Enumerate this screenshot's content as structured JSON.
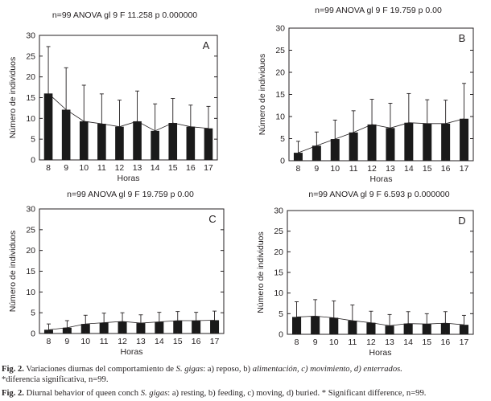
{
  "chart_data": [
    {
      "type": "bar",
      "panel_letter": "A",
      "title": "n=99 ANOVA gl 9 F 11.258 p 0.000000",
      "xlabel": "Horas",
      "ylabel": "Número de individuos",
      "categories": [
        "8",
        "9",
        "10",
        "11",
        "12",
        "13",
        "14",
        "15",
        "16",
        "17"
      ],
      "values": [
        16,
        12.1,
        9.3,
        8.7,
        8,
        9.3,
        7,
        8.9,
        8,
        7.6
      ],
      "error": [
        11.3,
        10.1,
        8.7,
        7.2,
        6.4,
        7.3,
        6.5,
        5.9,
        5.2,
        5.3
      ],
      "ylim": [
        0,
        30
      ],
      "yticks": [
        "0",
        "5",
        "10",
        "15",
        "20",
        "25",
        "30"
      ],
      "trend_line": true
    },
    {
      "type": "bar",
      "panel_letter": "B",
      "title": "n=99 ANOVA gl 9 F 19.759 p 0.00",
      "xlabel": "Horas",
      "ylabel": "Número de individuos",
      "categories": [
        "8",
        "9",
        "10",
        "11",
        "12",
        "13",
        "14",
        "15",
        "16",
        "17"
      ],
      "values": [
        1.8,
        3.4,
        4.9,
        6.4,
        8.2,
        7.4,
        8.6,
        8.4,
        8.4,
        9.5
      ],
      "error": [
        2.6,
        3.1,
        4.3,
        4.9,
        5.7,
        5.6,
        6.6,
        5.4,
        5.3,
        8
      ],
      "ylim": [
        0,
        30
      ],
      "yticks": [
        "0",
        "5",
        "10",
        "15",
        "20",
        "25",
        "30"
      ],
      "trend_line": true
    },
    {
      "type": "bar",
      "panel_letter": "C",
      "title": "n=99 ANOVA gl 9 F 19.759 p 0.00",
      "xlabel": "Horas",
      "ylabel": "Número de individuos",
      "categories": [
        "8",
        "9",
        "10",
        "11",
        "12",
        "13",
        "14",
        "15",
        "16",
        "17"
      ],
      "values": [
        0.9,
        1.4,
        2.3,
        2.6,
        2.9,
        2.5,
        2.8,
        3.1,
        3.1,
        3.2
      ],
      "error": [
        1.4,
        1.7,
        2.1,
        2.3,
        2.1,
        2,
        2.3,
        2.2,
        2,
        2.2
      ],
      "ylim": [
        0,
        30
      ],
      "yticks": [
        "0",
        "5",
        "10",
        "15",
        "20",
        "25",
        "30"
      ],
      "trend_line": true
    },
    {
      "type": "bar",
      "panel_letter": "D",
      "title": "n=99 ANOVA gl 9 F 6.593 p 0.000000",
      "xlabel": "Horas",
      "ylabel": "Número de individuos",
      "categories": [
        "8",
        "9",
        "10",
        "11",
        "12",
        "13",
        "14",
        "15",
        "16",
        "17"
      ],
      "values": [
        4.2,
        4.4,
        4,
        3.3,
        2.8,
        2.1,
        2.6,
        2.5,
        2.7,
        2.3
      ],
      "error": [
        3.7,
        4,
        4.1,
        3.8,
        2.8,
        2.7,
        2.9,
        2.5,
        2.8,
        2.3
      ],
      "ylim": [
        0,
        30
      ],
      "yticks": [
        "0",
        "5",
        "10",
        "15",
        "20",
        "25",
        "30"
      ],
      "trend_line": true
    }
  ],
  "captions": {
    "es_label": "Fig. 2.",
    "es_text_1": " Variaciones diurnas del comportamiento de ",
    "es_species": "S. gigas",
    "es_text_2": ": a) reposo, b) ",
    "es_italic_rest": "alimentación, c) movimiento, d) enterrados.",
    "es_line2": "*diferencia significativa, n=99.",
    "en_label": "Fig. 2.",
    "en_text_1": " Diurnal behavior of queen conch ",
    "en_species": "S. gigas",
    "en_text_2": ": a) resting, b) feeding, c) moving, d) buried. * Significant difference, n=99."
  }
}
